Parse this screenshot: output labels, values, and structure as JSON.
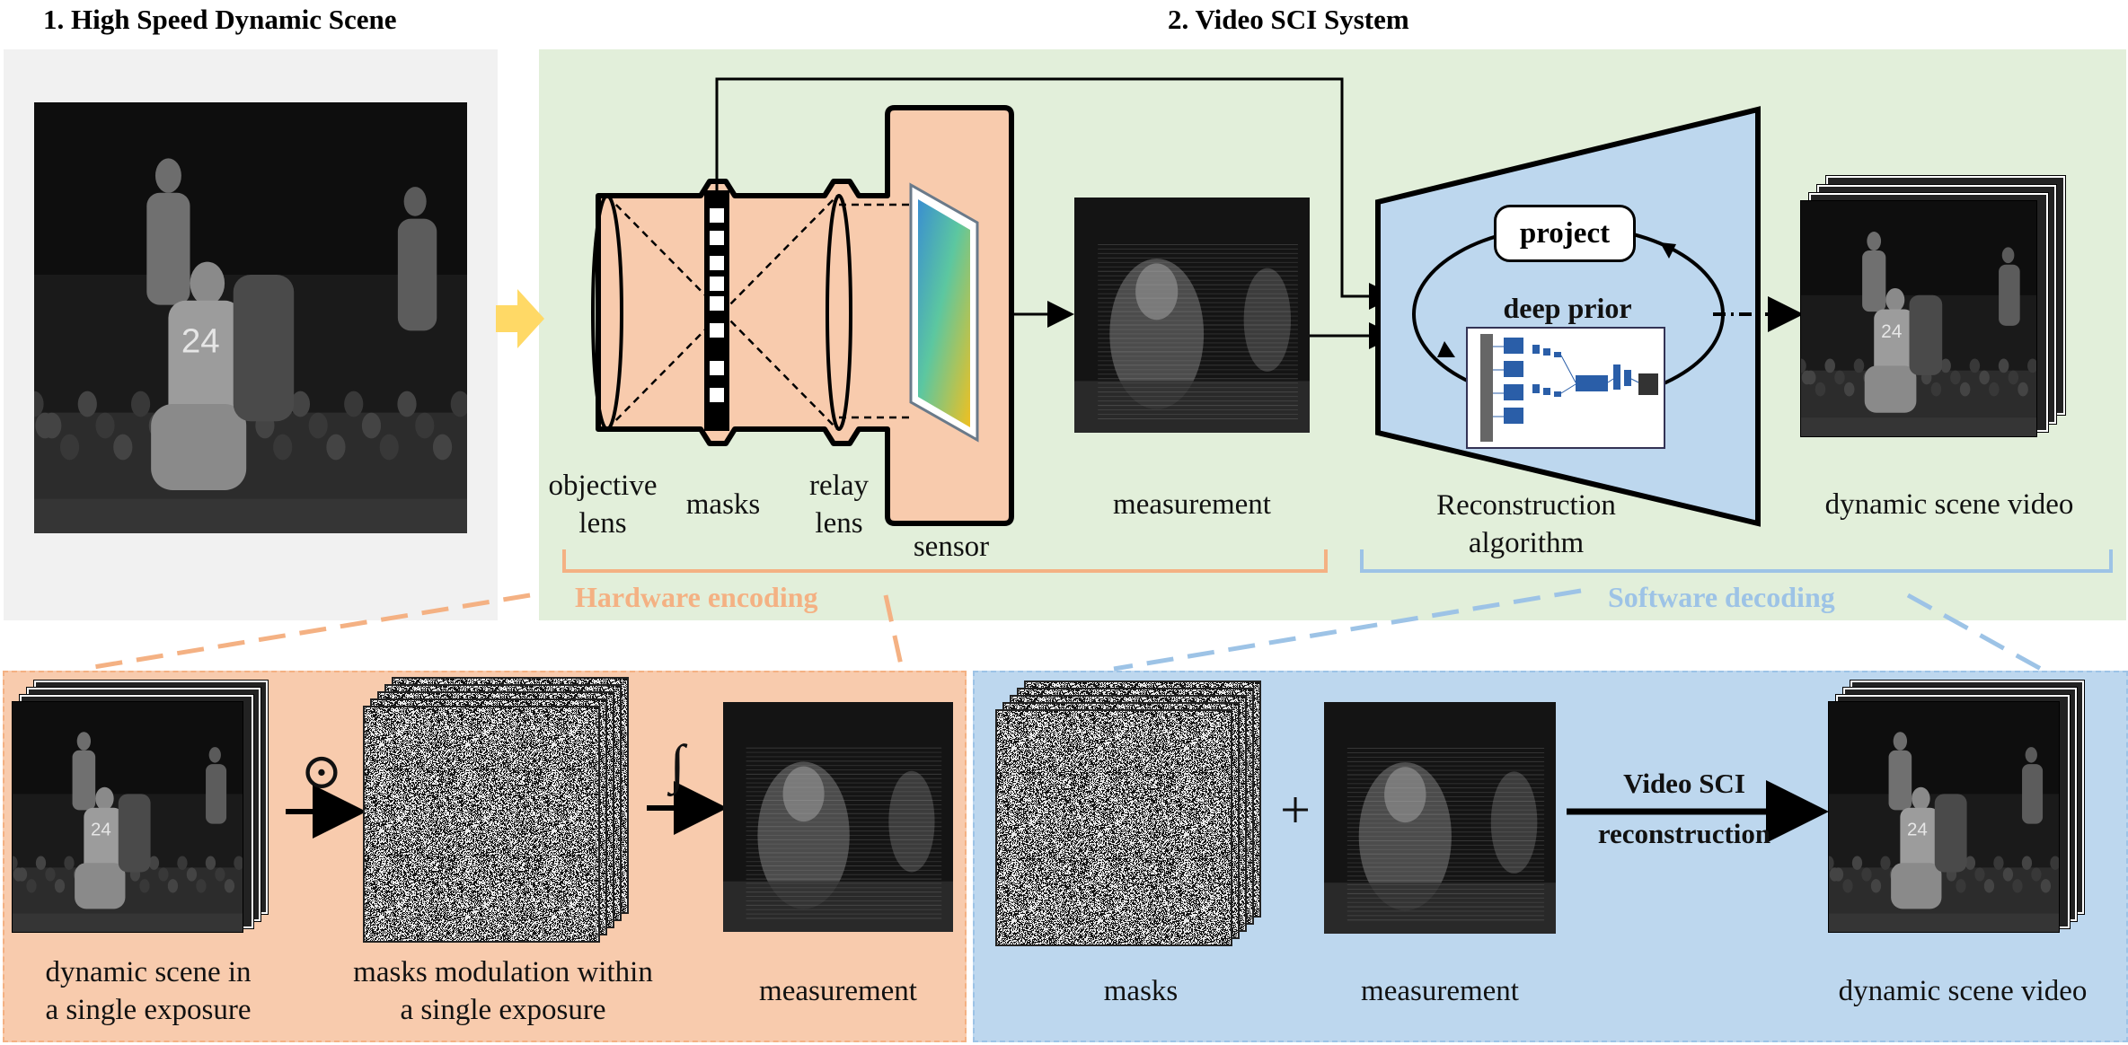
{
  "sections": {
    "scene_title": "1. High Speed Dynamic Scene",
    "system_title": "2. Video SCI System"
  },
  "hardware": {
    "objective_lens_line1": "objective",
    "objective_lens_line2": "lens",
    "masks": "masks",
    "relay_lens_line1": "relay",
    "relay_lens_line2": "lens",
    "sensor": "sensor",
    "measurement": "measurement",
    "group_label": "Hardware encoding"
  },
  "software": {
    "project": "project",
    "deep_prior": "deep prior",
    "reconstruction_line1": "Reconstruction",
    "reconstruction_line2": "algorithm",
    "output": "dynamic scene video",
    "group_label": "Software decoding"
  },
  "encoding_detail": {
    "scene_line1": "dynamic scene in",
    "scene_line2": "a single exposure",
    "hadamard_symbol": "⊙",
    "masks_line1": "masks modulation within",
    "masks_line2": "a single exposure",
    "integral_symbol": "∫",
    "measurement": "measurement"
  },
  "decoding_detail": {
    "masks": "masks",
    "plus_symbol": "+",
    "measurement": "measurement",
    "arrow_line1": "Video SCI",
    "arrow_line2": "reconstruction",
    "output": "dynamic scene video"
  },
  "colors": {
    "scene_panel": "#f1f1f1",
    "system_panel": "#e2efda",
    "hardware_fill": "#f8cbad",
    "software_fill": "#bdd7ee",
    "hardware_label": "#f4b183",
    "software_label": "#9dc3e6",
    "arrow_yellow": "#ffd966"
  }
}
